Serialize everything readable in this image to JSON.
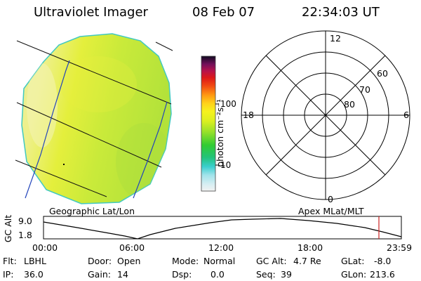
{
  "header": {
    "instrument": "Ultraviolet Imager",
    "date": "08 Feb 07",
    "time": "22:34:03 UT"
  },
  "colorbar": {
    "unit_label": "photon cm⁻²s⁻¹",
    "ticks": [
      "100",
      "10"
    ]
  },
  "panels": {
    "left_caption": "Geographic Lat/Lon",
    "right_caption": "Apex MLat/MLT"
  },
  "polar": {
    "mlt_labels": [
      "12",
      "18",
      "6",
      "0"
    ],
    "mlat_labels": [
      "60",
      "70",
      "80"
    ]
  },
  "altitude_plot": {
    "axis_title": "GC Alt",
    "y_ticks": [
      "9.0",
      "1.8"
    ],
    "x_ticks": [
      "00:00",
      "06:00",
      "12:00",
      "18:00",
      "23:59"
    ],
    "current_time_color": "#cc2222"
  },
  "status": {
    "flt_label": "Flt:",
    "flt_value": "LBHL",
    "ip_label": "IP:",
    "ip_value": "36.0",
    "door_label": "Door:",
    "door_value": "Open",
    "gain_label": "Gain:",
    "gain_value": "14",
    "mode_label": "Mode:",
    "mode_value": "Normal",
    "dsp_label": "Dsp:",
    "dsp_value": "0.0",
    "gcalt_label": "GC Alt:",
    "gcalt_value": "4.7 Re",
    "seq_label": "Seq:",
    "seq_value": "39",
    "glat_label": "GLat:",
    "glat_value": "-8.0",
    "glon_label": "GLon:",
    "glon_value": "213.6"
  }
}
